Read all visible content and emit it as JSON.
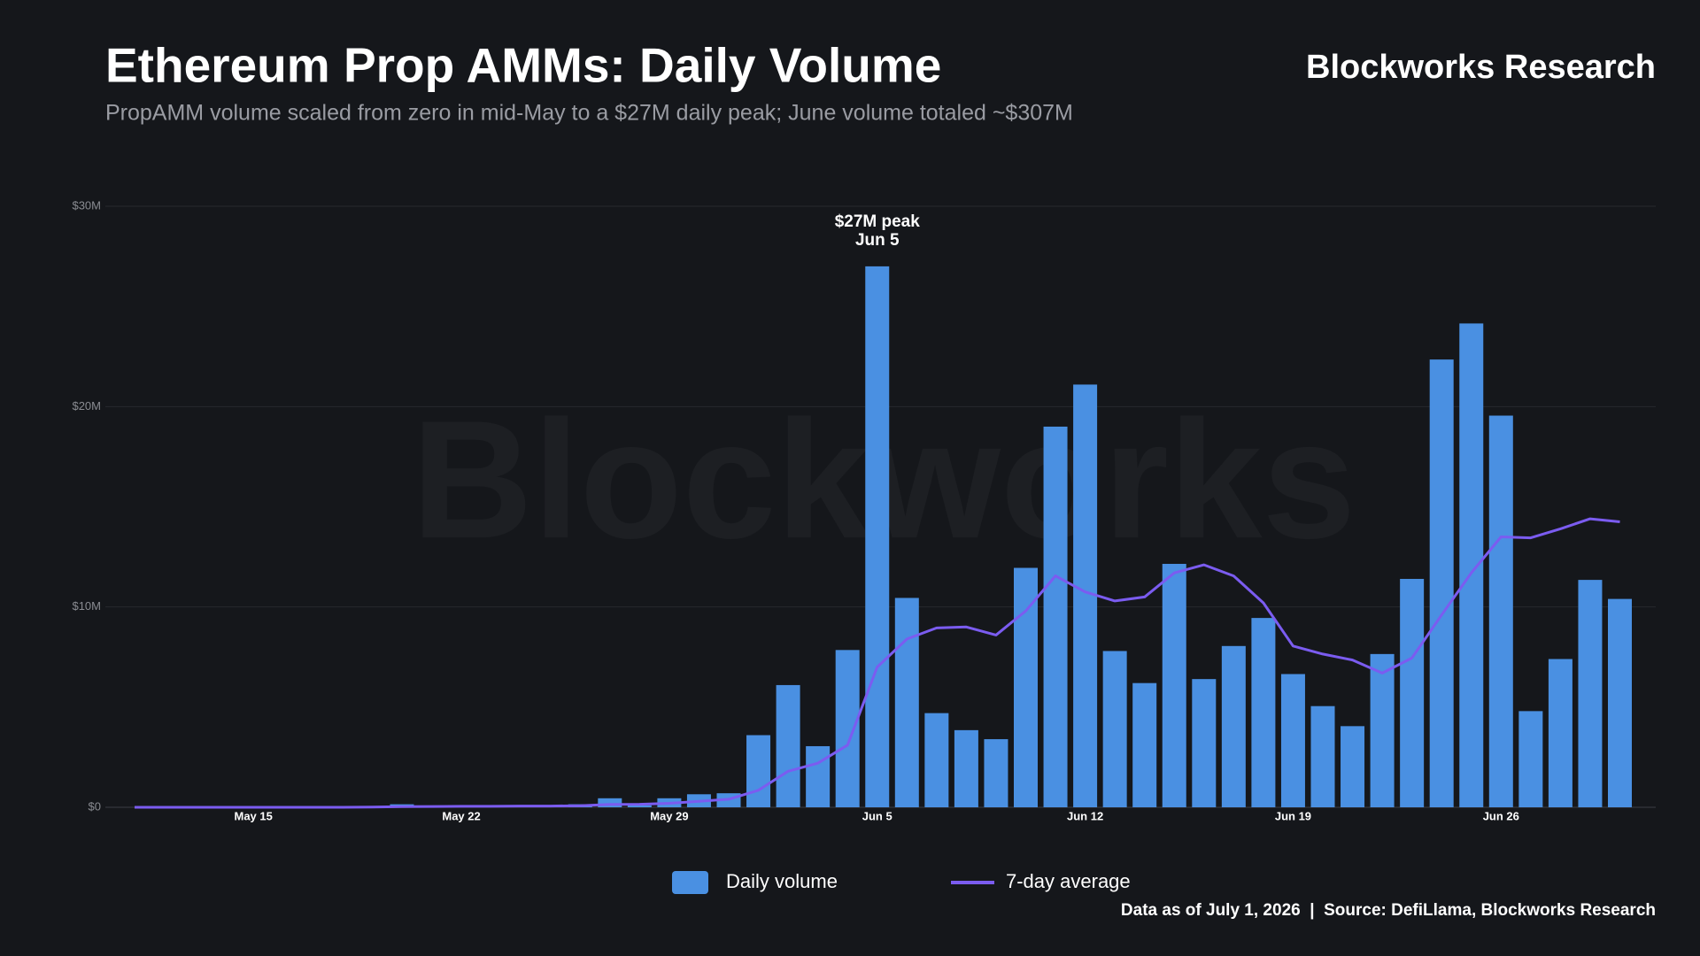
{
  "chart_data": {
    "type": "bar",
    "title": "Ethereum Prop AMMs: Daily Volume",
    "subtitle": "PropAMM volume scaled from zero in mid-May to a $27M daily peak; June volume totaled ~$307M",
    "brand": "Blockworks Research",
    "watermark": "Blockworks",
    "footer": "Data as of July 1, 2026  |  Source: DefiLlama, Blockworks Research",
    "annotation": {
      "lines": [
        "$27M peak",
        "Jun 5"
      ],
      "index": 25
    },
    "categories": [
      null,
      null,
      null,
      null,
      "May 15",
      null,
      null,
      null,
      null,
      null,
      null,
      "May 22",
      null,
      null,
      null,
      null,
      null,
      null,
      "May 29",
      null,
      null,
      null,
      null,
      null,
      null,
      "Jun 5",
      null,
      null,
      null,
      null,
      null,
      null,
      "Jun 12",
      null,
      null,
      null,
      null,
      null,
      null,
      "Jun 19",
      null,
      null,
      null,
      null,
      null,
      null,
      "Jun 26",
      null,
      null,
      null,
      null
    ],
    "series": [
      {
        "name": "Daily volume",
        "type": "bar",
        "color": "#4a90e2",
        "values": [
          0,
          0,
          0,
          0,
          0,
          0,
          0,
          0,
          0.02,
          0.15,
          0.05,
          0.05,
          0.05,
          0.05,
          0.05,
          0.15,
          0.45,
          0.1,
          0.45,
          0.65,
          0.7,
          3.6,
          6.1,
          3.05,
          7.85,
          27,
          10.45,
          4.7,
          3.85,
          3.4,
          11.95,
          19,
          21.1,
          7.8,
          6.2,
          12.15,
          6.4,
          8.05,
          9.45,
          6.65,
          5.05,
          4.05,
          7.65,
          11.4,
          22.35,
          24.15,
          19.55,
          4.8,
          7.4,
          11.35,
          10.4
        ]
      },
      {
        "name": "7-day average",
        "type": "line",
        "color": "#7b5cf0",
        "values": [
          0,
          0,
          0,
          0,
          0,
          0,
          0,
          0,
          0.01,
          0.03,
          0.04,
          0.05,
          0.05,
          0.06,
          0.06,
          0.08,
          0.14,
          0.15,
          0.2,
          0.3,
          0.4,
          0.85,
          1.8,
          2.2,
          3.1,
          7.0,
          8.4,
          8.95,
          9.0,
          8.6,
          9.8,
          11.55,
          10.75,
          10.3,
          10.5,
          11.7,
          12.1,
          11.55,
          10.2,
          8.05,
          7.65,
          7.35,
          6.7,
          7.45,
          9.6,
          11.7,
          13.5,
          13.45,
          13.9,
          14.4,
          14.25
        ]
      }
    ],
    "ylim": [
      0,
      30
    ],
    "yticks": [
      {
        "value": 0,
        "label": "$0"
      },
      {
        "value": 10,
        "label": "$10M"
      },
      {
        "value": 20,
        "label": "$20M"
      },
      {
        "value": 30,
        "label": "$30M"
      }
    ],
    "grid": true,
    "legend": "bottom"
  }
}
